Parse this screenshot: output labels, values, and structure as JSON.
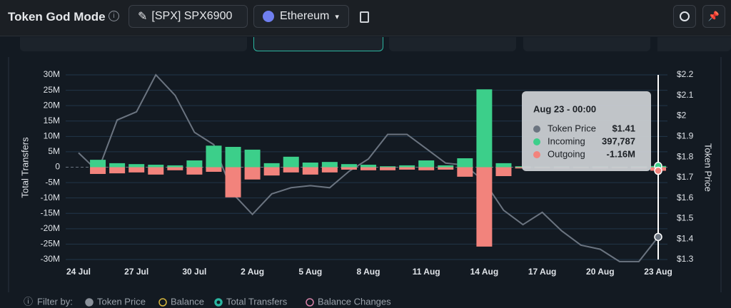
{
  "header": {
    "title": "Token God Mode",
    "token": "[SPX] SPX6900",
    "chain": "Ethereum"
  },
  "filters": {
    "label": "Filter by:",
    "items": [
      "Token Price",
      "Balance",
      "Total Transfers",
      "Balance Changes"
    ]
  },
  "chart_data": {
    "type": "bar",
    "ylabel": "Total Transfers",
    "y2label": "Token Price",
    "categories": [
      "24 Jul",
      null,
      null,
      "27 Jul",
      null,
      null,
      "30 Jul",
      null,
      null,
      "2 Aug",
      null,
      null,
      "5 Aug",
      null,
      null,
      "8 Aug",
      null,
      null,
      "11 Aug",
      null,
      null,
      "14 Aug",
      null,
      null,
      "17 Aug",
      null,
      null,
      "20 Aug",
      null,
      null,
      "23 Aug"
    ],
    "ylim": [
      -30000000,
      30000000
    ],
    "yticks": [
      {
        "value": 30000000,
        "label": "30M"
      },
      {
        "value": 25000000,
        "label": "25M"
      },
      {
        "value": 20000000,
        "label": "20M"
      },
      {
        "value": 15000000,
        "label": "15M"
      },
      {
        "value": 10000000,
        "label": "10M"
      },
      {
        "value": 5000000,
        "label": "5M"
      },
      0,
      {
        "value": -5000000,
        "label": "-5M"
      },
      {
        "value": -10000000,
        "label": "-10M"
      },
      {
        "value": -15000000,
        "label": "-15M"
      },
      {
        "value": -20000000,
        "label": "-20M"
      },
      {
        "value": -25000000,
        "label": "-25M"
      },
      {
        "value": -30000000,
        "label": "-30M"
      }
    ],
    "y2lim": [
      1.3,
      2.2
    ],
    "y2ticks": [
      {
        "value": 2.2,
        "label": "$2.2"
      },
      {
        "value": 2.1,
        "label": "$2.1"
      },
      {
        "value": 2,
        "label": "$2"
      },
      {
        "value": 1.9,
        "label": "$1.9"
      },
      {
        "value": 1.8,
        "label": "$1.8"
      },
      {
        "value": 1.7,
        "label": "$1.7"
      },
      {
        "value": 1.6,
        "label": "$1.6"
      },
      {
        "value": 1.5,
        "label": "$1.5"
      },
      {
        "value": 1.4,
        "label": "$1.4"
      },
      {
        "value": 1.3,
        "label": "$1.3"
      }
    ],
    "grid": true,
    "series": [
      {
        "name": "Token Price",
        "type": "line",
        "axis": "y2",
        "color": "#6b7480",
        "values": [
          1.82,
          1.73,
          1.98,
          2.02,
          2.2,
          2.1,
          1.92,
          1.86,
          1.62,
          1.52,
          1.62,
          1.65,
          1.66,
          1.65,
          1.73,
          1.79,
          1.91,
          1.91,
          1.84,
          1.77,
          1.76,
          1.68,
          1.54,
          1.47,
          1.53,
          1.44,
          1.37,
          1.35,
          1.29,
          1.29,
          1.41
        ],
        "value_labels": [
          null,
          null,
          null,
          null,
          null,
          null,
          null,
          null,
          null,
          null,
          null,
          null,
          null,
          null,
          null,
          null,
          null,
          null,
          null,
          null,
          null,
          null,
          null,
          null,
          null,
          null,
          null,
          null,
          null,
          null,
          "$1.41"
        ]
      },
      {
        "name": "Incoming",
        "type": "bar",
        "color": "#3ccf8a",
        "values": [
          null,
          2400000,
          1300000,
          1000000,
          800000,
          600000,
          2200000,
          7000000,
          6600000,
          5700000,
          1300000,
          3400000,
          1500000,
          1700000,
          1000000,
          800000,
          300000,
          600000,
          2200000,
          600000,
          2900000,
          25300000,
          1300000,
          300000,
          200000,
          300000,
          200000,
          300000,
          200000,
          300000,
          397787
        ],
        "value_labels": [
          null,
          null,
          null,
          null,
          null,
          null,
          null,
          null,
          null,
          null,
          null,
          null,
          null,
          null,
          null,
          null,
          null,
          null,
          null,
          null,
          null,
          null,
          null,
          null,
          null,
          null,
          null,
          null,
          null,
          null,
          "397,787"
        ]
      },
      {
        "name": "Outgoing",
        "type": "bar",
        "color": "#f2837c",
        "values": [
          null,
          -2200000,
          -2000000,
          -1700000,
          -2400000,
          -1000000,
          -2400000,
          -1500000,
          -9800000,
          -4000000,
          -2700000,
          -1700000,
          -2400000,
          -1700000,
          -800000,
          -1000000,
          -1000000,
          -800000,
          -1000000,
          -800000,
          -3100000,
          -25800000,
          -2900000,
          -400000,
          -300000,
          -400000,
          -300000,
          -400000,
          -300000,
          -400000,
          -1160000
        ],
        "value_labels": [
          null,
          null,
          null,
          null,
          null,
          null,
          null,
          null,
          null,
          null,
          null,
          null,
          null,
          null,
          null,
          null,
          null,
          null,
          null,
          null,
          null,
          null,
          null,
          null,
          null,
          null,
          null,
          null,
          null,
          null,
          "-1.16M"
        ]
      }
    ],
    "tooltip": {
      "title": "Aug 23 - 00:00"
    }
  }
}
